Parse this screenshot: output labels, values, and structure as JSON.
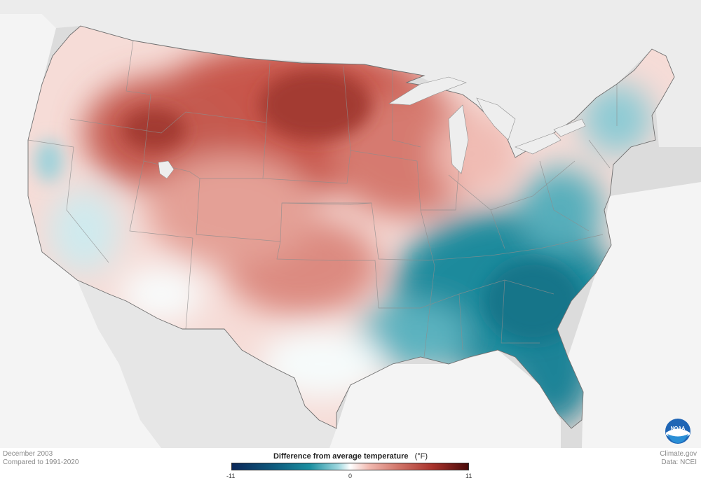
{
  "footer": {
    "period": "December 2003",
    "baseline": "Compared to 1991-2020",
    "source_site": "Climate.gov",
    "source_data": "Data: NCEI"
  },
  "legend": {
    "title": "Difference from average temperature",
    "unit": "(°F)",
    "min_label": "-11",
    "mid_label": "0",
    "max_label": "11",
    "color_stops": [
      "#0b2859",
      "#0e5b7e",
      "#1b8fa0",
      "#9fd8e0",
      "#ffffff",
      "#f1b9b0",
      "#d2776b",
      "#a8322b",
      "#4a0a0a"
    ]
  },
  "logo": {
    "text": "NOAA",
    "icon": "noaa-logo-icon"
  },
  "map": {
    "region": "contiguous-us",
    "anomaly_pattern": "warm-north-and-west-cool-southeast",
    "background_color": "#dcdcdc",
    "land_color": "#f4f4f4"
  }
}
